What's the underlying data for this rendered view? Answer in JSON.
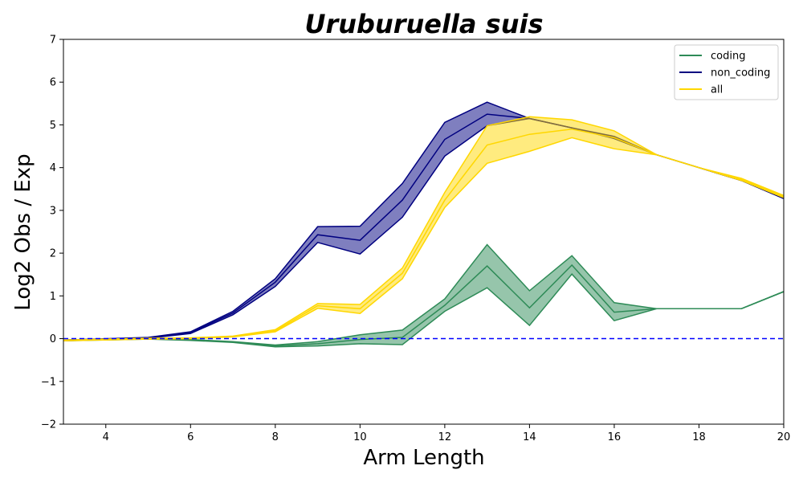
{
  "chart_data": {
    "type": "line",
    "title": "Uruburuella suis",
    "xlabel": "Arm Length",
    "ylabel": "Log2 Obs / Exp",
    "xlim": [
      3,
      20
    ],
    "ylim": [
      -2,
      7
    ],
    "xticks": [
      4,
      6,
      8,
      10,
      12,
      14,
      16,
      18,
      20
    ],
    "yticks": [
      -2,
      -1,
      0,
      1,
      2,
      3,
      4,
      5,
      6,
      7
    ],
    "ytick_labels": [
      "−2",
      "−1",
      "0",
      "1",
      "2",
      "3",
      "4",
      "5",
      "6",
      "7"
    ],
    "grid": false,
    "legend_position": "top-right",
    "reference_line": {
      "y": 0,
      "style": "dashed",
      "color": "#0000ff"
    },
    "x": [
      3,
      4,
      5,
      6,
      7,
      8,
      9,
      10,
      11,
      12,
      13,
      14,
      15,
      16,
      17,
      18,
      19,
      20
    ],
    "series": [
      {
        "name": "coding",
        "color": "#2e8b57",
        "mean": [
          -0.04,
          -0.02,
          0.0,
          -0.03,
          -0.08,
          -0.17,
          -0.12,
          -0.02,
          0.03,
          0.78,
          1.7,
          0.72,
          1.72,
          0.62,
          0.7,
          0.7,
          0.7,
          1.1
        ],
        "upper": [
          -0.03,
          -0.01,
          0.01,
          -0.02,
          -0.07,
          -0.15,
          -0.07,
          0.09,
          0.2,
          0.93,
          2.2,
          1.12,
          1.94,
          0.84,
          0.7,
          0.7,
          0.7,
          1.1
        ],
        "lower": [
          -0.05,
          -0.03,
          -0.01,
          -0.04,
          -0.09,
          -0.19,
          -0.17,
          -0.12,
          -0.14,
          0.64,
          1.19,
          0.31,
          1.51,
          0.42,
          0.7,
          0.7,
          0.7,
          1.1
        ]
      },
      {
        "name": "non_coding",
        "color": "#000080",
        "mean": [
          -0.04,
          -0.01,
          0.02,
          0.14,
          0.6,
          1.32,
          2.43,
          2.3,
          3.24,
          4.66,
          5.25,
          5.15,
          4.93,
          4.7,
          4.3,
          4.0,
          3.7,
          3.28
        ],
        "upper": [
          -0.03,
          0.0,
          0.03,
          0.16,
          0.64,
          1.4,
          2.62,
          2.63,
          3.63,
          5.06,
          5.53,
          5.15,
          4.93,
          4.73,
          4.3,
          4.0,
          3.7,
          3.28
        ],
        "lower": [
          -0.05,
          -0.02,
          0.01,
          0.12,
          0.56,
          1.22,
          2.25,
          1.98,
          2.84,
          4.27,
          4.98,
          5.15,
          4.93,
          4.68,
          4.3,
          4.0,
          3.7,
          3.28
        ]
      },
      {
        "name": "all",
        "color": "#ffd700",
        "mean": [
          -0.04,
          -0.02,
          0.0,
          0.01,
          0.05,
          0.18,
          0.77,
          0.7,
          1.53,
          3.24,
          4.53,
          4.78,
          4.9,
          4.7,
          4.3,
          4.0,
          3.72,
          3.32
        ],
        "upper": [
          -0.03,
          -0.01,
          0.01,
          0.02,
          0.06,
          0.21,
          0.82,
          0.8,
          1.65,
          3.42,
          4.98,
          5.19,
          5.12,
          4.86,
          4.3,
          4.0,
          3.75,
          3.35
        ],
        "lower": [
          -0.05,
          -0.03,
          -0.01,
          0.0,
          0.04,
          0.16,
          0.71,
          0.59,
          1.4,
          3.07,
          4.1,
          4.38,
          4.7,
          4.44,
          4.3,
          4.0,
          3.7,
          3.3
        ]
      }
    ]
  }
}
